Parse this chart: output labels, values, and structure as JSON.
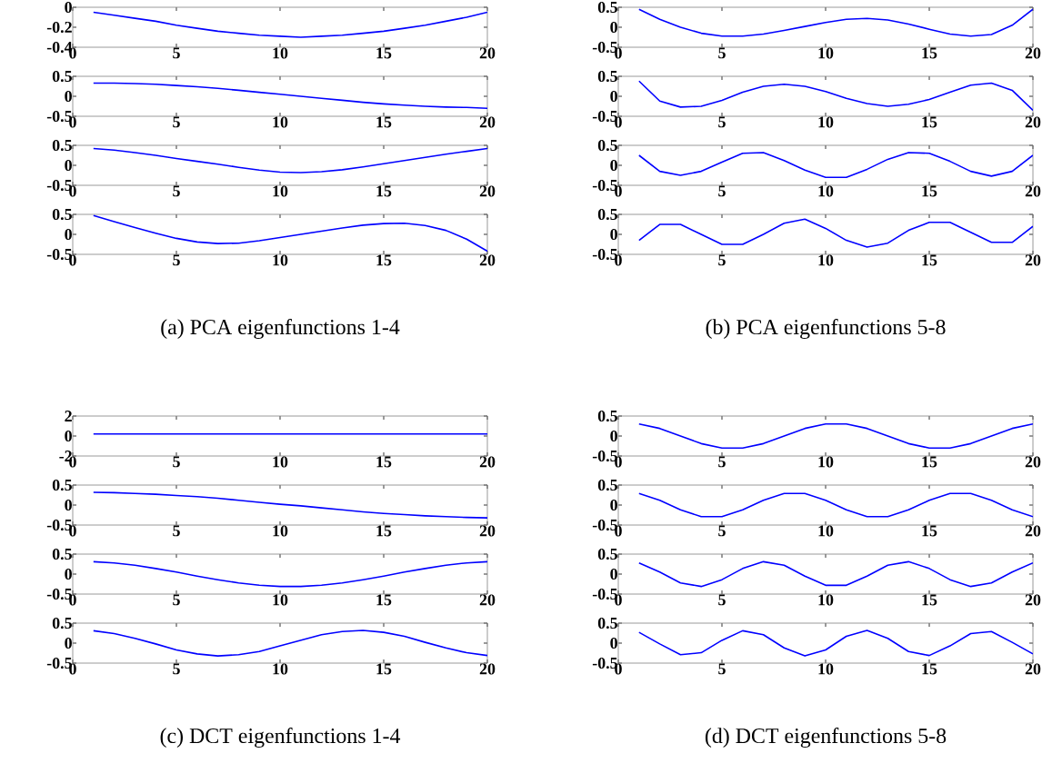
{
  "chart_data": [
    {
      "type": "line",
      "x": [
        1,
        2,
        3,
        4,
        5,
        6,
        7,
        8,
        9,
        10,
        11,
        12,
        13,
        14,
        15,
        16,
        17,
        18,
        19,
        20
      ],
      "xlim": [
        0,
        20
      ],
      "xticks": [
        0,
        5,
        10,
        15,
        20
      ],
      "ylim": [
        -0.4,
        0
      ],
      "yticks": [
        -0.4,
        -0.2,
        0
      ],
      "color": "#0000ff",
      "values": [
        -0.05,
        -0.08,
        -0.11,
        -0.14,
        -0.18,
        -0.21,
        -0.24,
        -0.26,
        -0.28,
        -0.29,
        -0.3,
        -0.29,
        -0.28,
        -0.26,
        -0.24,
        -0.21,
        -0.18,
        -0.14,
        -0.1,
        -0.05
      ]
    },
    {
      "type": "line",
      "x": [
        1,
        2,
        3,
        4,
        5,
        6,
        7,
        8,
        9,
        10,
        11,
        12,
        13,
        14,
        15,
        16,
        17,
        18,
        19,
        20
      ],
      "xlim": [
        0,
        20
      ],
      "xticks": [
        0,
        5,
        10,
        15,
        20
      ],
      "ylim": [
        -0.5,
        0.5
      ],
      "yticks": [
        -0.5,
        0,
        0.5
      ],
      "color": "#0000ff",
      "values": [
        0.33,
        0.33,
        0.32,
        0.3,
        0.27,
        0.24,
        0.2,
        0.15,
        0.1,
        0.05,
        0,
        -0.05,
        -0.1,
        -0.15,
        -0.19,
        -0.22,
        -0.25,
        -0.27,
        -0.28,
        -0.3
      ]
    },
    {
      "type": "line",
      "x": [
        1,
        2,
        3,
        4,
        5,
        6,
        7,
        8,
        9,
        10,
        11,
        12,
        13,
        14,
        15,
        16,
        17,
        18,
        19,
        20
      ],
      "xlim": [
        0,
        20
      ],
      "xticks": [
        0,
        5,
        10,
        15,
        20
      ],
      "ylim": [
        -0.5,
        0.5
      ],
      "yticks": [
        -0.5,
        0,
        0.5
      ],
      "color": "#0000ff",
      "values": [
        0.42,
        0.38,
        0.32,
        0.25,
        0.17,
        0.1,
        0.03,
        -0.05,
        -0.12,
        -0.17,
        -0.18,
        -0.16,
        -0.11,
        -0.04,
        0.04,
        0.12,
        0.2,
        0.28,
        0.35,
        0.42
      ]
    },
    {
      "type": "line",
      "x": [
        1,
        2,
        3,
        4,
        5,
        6,
        7,
        8,
        9,
        10,
        11,
        12,
        13,
        14,
        15,
        16,
        17,
        18,
        19,
        20
      ],
      "xlim": [
        0,
        20
      ],
      "xticks": [
        0,
        5,
        10,
        15,
        20
      ],
      "ylim": [
        -0.5,
        0.5
      ],
      "yticks": [
        -0.5,
        0,
        0.5
      ],
      "color": "#0000ff",
      "values": [
        0.47,
        0.32,
        0.17,
        0.03,
        -0.1,
        -0.19,
        -0.23,
        -0.22,
        -0.16,
        -0.08,
        0,
        0.08,
        0.16,
        0.23,
        0.27,
        0.28,
        0.22,
        0.1,
        -0.12,
        -0.42
      ],
      "annotations": [
        "(a)  PCA eigenfunctions 1-4"
      ]
    },
    {
      "type": "line",
      "x": [
        1,
        2,
        3,
        4,
        5,
        6,
        7,
        8,
        9,
        10,
        11,
        12,
        13,
        14,
        15,
        16,
        17,
        18,
        19,
        20
      ],
      "xlim": [
        0,
        20
      ],
      "xticks": [
        0,
        5,
        10,
        15,
        20
      ],
      "ylim": [
        -0.5,
        0.5
      ],
      "yticks": [
        -0.5,
        0,
        0.5
      ],
      "color": "#0000ff",
      "values": [
        0.45,
        0.2,
        0,
        -0.15,
        -0.22,
        -0.22,
        -0.17,
        -0.08,
        0.02,
        0.12,
        0.2,
        0.22,
        0.18,
        0.08,
        -0.05,
        -0.17,
        -0.22,
        -0.18,
        0.05,
        0.45
      ]
    },
    {
      "type": "line",
      "x": [
        1,
        2,
        3,
        4,
        5,
        6,
        7,
        8,
        9,
        10,
        11,
        12,
        13,
        14,
        15,
        16,
        17,
        18,
        19,
        20
      ],
      "xlim": [
        0,
        20
      ],
      "xticks": [
        0,
        5,
        10,
        15,
        20
      ],
      "ylim": [
        -0.5,
        0.5
      ],
      "yticks": [
        -0.5,
        0,
        0.5
      ],
      "color": "#0000ff",
      "values": [
        0.38,
        -0.12,
        -0.27,
        -0.25,
        -0.1,
        0.1,
        0.25,
        0.3,
        0.25,
        0.12,
        -0.05,
        -0.18,
        -0.25,
        -0.2,
        -0.08,
        0.1,
        0.28,
        0.33,
        0.15,
        -0.35
      ]
    },
    {
      "type": "line",
      "x": [
        1,
        2,
        3,
        4,
        5,
        6,
        7,
        8,
        9,
        10,
        11,
        12,
        13,
        14,
        15,
        16,
        17,
        18,
        19,
        20
      ],
      "xlim": [
        0,
        20
      ],
      "xticks": [
        0,
        5,
        10,
        15,
        20
      ],
      "ylim": [
        -0.5,
        0.5
      ],
      "yticks": [
        -0.5,
        0,
        0.5
      ],
      "color": "#0000ff",
      "values": [
        0.25,
        -0.15,
        -0.25,
        -0.15,
        0.08,
        0.3,
        0.32,
        0.12,
        -0.12,
        -0.3,
        -0.3,
        -0.1,
        0.15,
        0.32,
        0.3,
        0.1,
        -0.15,
        -0.27,
        -0.15,
        0.25
      ]
    },
    {
      "type": "line",
      "x": [
        1,
        2,
        3,
        4,
        5,
        6,
        7,
        8,
        9,
        10,
        11,
        12,
        13,
        14,
        15,
        16,
        17,
        18,
        19,
        20
      ],
      "xlim": [
        0,
        20
      ],
      "xticks": [
        0,
        5,
        10,
        15,
        20
      ],
      "ylim": [
        -0.5,
        0.5
      ],
      "yticks": [
        -0.5,
        0,
        0.5
      ],
      "color": "#0000ff",
      "values": [
        -0.15,
        0.25,
        0.25,
        0,
        -0.25,
        -0.25,
        0,
        0.28,
        0.38,
        0.15,
        -0.15,
        -0.32,
        -0.22,
        0.1,
        0.3,
        0.3,
        0.05,
        -0.2,
        -0.2,
        0.2
      ],
      "annotations": [
        "(b)  PCA eigenfunctions 5-8"
      ]
    },
    {
      "type": "line",
      "x": [
        1,
        2,
        3,
        4,
        5,
        6,
        7,
        8,
        9,
        10,
        11,
        12,
        13,
        14,
        15,
        16,
        17,
        18,
        19,
        20
      ],
      "xlim": [
        0,
        20
      ],
      "xticks": [
        0,
        5,
        10,
        15,
        20
      ],
      "ylim": [
        -2,
        2
      ],
      "yticks": [
        -2,
        0,
        2
      ],
      "color": "#0000ff",
      "values": [
        0.2,
        0.2,
        0.2,
        0.2,
        0.2,
        0.2,
        0.2,
        0.2,
        0.2,
        0.2,
        0.2,
        0.2,
        0.2,
        0.2,
        0.2,
        0.2,
        0.2,
        0.2,
        0.2,
        0.2
      ]
    },
    {
      "type": "line",
      "x": [
        1,
        2,
        3,
        4,
        5,
        6,
        7,
        8,
        9,
        10,
        11,
        12,
        13,
        14,
        15,
        16,
        17,
        18,
        19,
        20
      ],
      "xlim": [
        0,
        20
      ],
      "xticks": [
        0,
        5,
        10,
        15,
        20
      ],
      "ylim": [
        -0.5,
        0.5
      ],
      "yticks": [
        -0.5,
        0,
        0.5
      ],
      "color": "#0000ff",
      "values": [
        0.32,
        0.31,
        0.29,
        0.27,
        0.24,
        0.21,
        0.17,
        0.12,
        0.07,
        0.02,
        -0.02,
        -0.07,
        -0.12,
        -0.17,
        -0.21,
        -0.24,
        -0.27,
        -0.29,
        -0.31,
        -0.32
      ]
    },
    {
      "type": "line",
      "x": [
        1,
        2,
        3,
        4,
        5,
        6,
        7,
        8,
        9,
        10,
        11,
        12,
        13,
        14,
        15,
        16,
        17,
        18,
        19,
        20
      ],
      "xlim": [
        0,
        20
      ],
      "xticks": [
        0,
        5,
        10,
        15,
        20
      ],
      "ylim": [
        -0.5,
        0.5
      ],
      "yticks": [
        -0.5,
        0,
        0.5
      ],
      "color": "#0000ff",
      "values": [
        0.31,
        0.28,
        0.22,
        0.14,
        0.05,
        -0.05,
        -0.14,
        -0.22,
        -0.28,
        -0.31,
        -0.31,
        -0.28,
        -0.22,
        -0.14,
        -0.05,
        0.05,
        0.14,
        0.22,
        0.28,
        0.31
      ]
    },
    {
      "type": "line",
      "x": [
        1,
        2,
        3,
        4,
        5,
        6,
        7,
        8,
        9,
        10,
        11,
        12,
        13,
        14,
        15,
        16,
        17,
        18,
        19,
        20
      ],
      "xlim": [
        0,
        20
      ],
      "xticks": [
        0,
        5,
        10,
        15,
        20
      ],
      "ylim": [
        -0.5,
        0.5
      ],
      "yticks": [
        -0.5,
        0,
        0.5
      ],
      "color": "#0000ff",
      "values": [
        0.31,
        0.24,
        0.12,
        -0.02,
        -0.17,
        -0.27,
        -0.32,
        -0.29,
        -0.21,
        -0.07,
        0.07,
        0.21,
        0.29,
        0.32,
        0.27,
        0.17,
        0.02,
        -0.12,
        -0.24,
        -0.31
      ],
      "annotations": [
        "(c)  DCT eigenfunctions 1-4"
      ]
    },
    {
      "type": "line",
      "x": [
        1,
        2,
        3,
        4,
        5,
        6,
        7,
        8,
        9,
        10,
        11,
        12,
        13,
        14,
        15,
        16,
        17,
        18,
        19,
        20
      ],
      "xlim": [
        0,
        20
      ],
      "xticks": [
        0,
        5,
        10,
        15,
        20
      ],
      "ylim": [
        -0.5,
        0.5
      ],
      "yticks": [
        -0.5,
        0,
        0.5
      ],
      "color": "#0000ff",
      "values": [
        0.3,
        0.19,
        0,
        -0.19,
        -0.3,
        -0.3,
        -0.19,
        0,
        0.19,
        0.3,
        0.3,
        0.19,
        0,
        -0.19,
        -0.3,
        -0.3,
        -0.19,
        0,
        0.19,
        0.3
      ]
    },
    {
      "type": "line",
      "x": [
        1,
        2,
        3,
        4,
        5,
        6,
        7,
        8,
        9,
        10,
        11,
        12,
        13,
        14,
        15,
        16,
        17,
        18,
        19,
        20
      ],
      "xlim": [
        0,
        20
      ],
      "xticks": [
        0,
        5,
        10,
        15,
        20
      ],
      "ylim": [
        -0.5,
        0.5
      ],
      "yticks": [
        -0.5,
        0,
        0.5
      ],
      "color": "#0000ff",
      "values": [
        0.29,
        0.12,
        -0.12,
        -0.29,
        -0.29,
        -0.12,
        0.12,
        0.29,
        0.29,
        0.12,
        -0.12,
        -0.29,
        -0.29,
        -0.12,
        0.12,
        0.29,
        0.29,
        0.12,
        -0.12,
        -0.29
      ]
    },
    {
      "type": "line",
      "x": [
        1,
        2,
        3,
        4,
        5,
        6,
        7,
        8,
        9,
        10,
        11,
        12,
        13,
        14,
        15,
        16,
        17,
        18,
        19,
        20
      ],
      "xlim": [
        0,
        20
      ],
      "xticks": [
        0,
        5,
        10,
        15,
        20
      ],
      "ylim": [
        -0.5,
        0.5
      ],
      "yticks": [
        -0.5,
        0,
        0.5
      ],
      "color": "#0000ff",
      "values": [
        0.28,
        0.05,
        -0.22,
        -0.31,
        -0.14,
        0.14,
        0.31,
        0.22,
        -0.05,
        -0.28,
        -0.28,
        -0.05,
        0.22,
        0.31,
        0.14,
        -0.14,
        -0.31,
        -0.22,
        0.05,
        0.28
      ]
    },
    {
      "type": "line",
      "x": [
        1,
        2,
        3,
        4,
        5,
        6,
        7,
        8,
        9,
        10,
        11,
        12,
        13,
        14,
        15,
        16,
        17,
        18,
        19,
        20
      ],
      "xlim": [
        0,
        20
      ],
      "xticks": [
        0,
        5,
        10,
        15,
        20
      ],
      "ylim": [
        -0.5,
        0.5
      ],
      "yticks": [
        -0.5,
        0,
        0.5
      ],
      "color": "#0000ff",
      "values": [
        0.27,
        -0.02,
        -0.29,
        -0.24,
        0.07,
        0.31,
        0.21,
        -0.12,
        -0.32,
        -0.17,
        0.17,
        0.32,
        0.12,
        -0.21,
        -0.31,
        -0.07,
        0.24,
        0.29,
        0.02,
        -0.27
      ],
      "annotations": [
        "(d)  DCT eigenfunctions 5-8"
      ]
    }
  ]
}
